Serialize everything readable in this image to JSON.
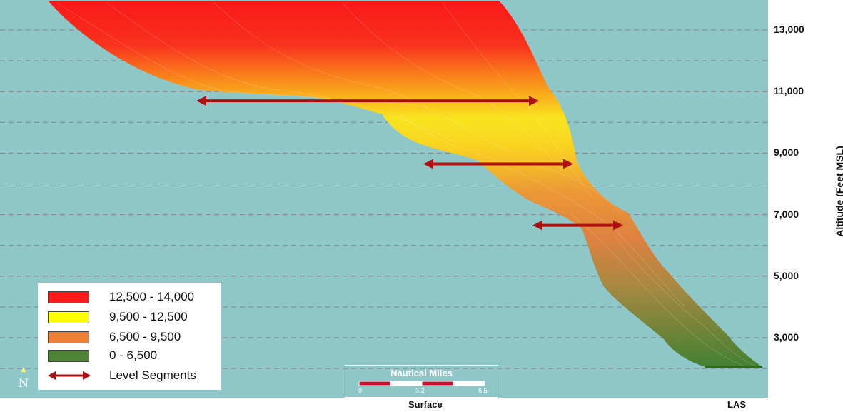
{
  "chart_data": {
    "type": "line",
    "ylabel": "Altitude (Feet MSL)",
    "ytick_labels": [
      "13,000",
      "11,000",
      "9,000",
      "7,000",
      "5,000",
      "3,000"
    ],
    "yticks": [
      13000,
      11000,
      9000,
      7000,
      5000,
      3000
    ],
    "ylim": [
      1600,
      13700
    ],
    "gridlines": [
      13000,
      12000,
      11000,
      10000,
      9000,
      8000,
      7000,
      6000,
      5000,
      4000,
      3000,
      2000
    ],
    "grid": true,
    "x_categories": [
      "Surface",
      "LAS"
    ],
    "series": [
      {
        "name": "12,500 - 14,000",
        "color": "#ff1a1a"
      },
      {
        "name": "9,500 - 12,500",
        "color": "#ffff00"
      },
      {
        "name": "6,500 - 9,500",
        "color": "#ee8035"
      },
      {
        "name": "0 - 6,500",
        "color": "#4f8436"
      }
    ],
    "level_segments": [
      {
        "name": "Level Segments",
        "altitude": 10700
      },
      {
        "name": "Level Segments",
        "altitude": 8650
      },
      {
        "name": "Level Segments",
        "altitude": 6650
      }
    ],
    "legend_position": "bottom-left",
    "legend": [
      {
        "label": "12,500 - 14,000",
        "color": "#ff1a1a",
        "kind": "swatch"
      },
      {
        "label": "9,500 - 12,500",
        "color": "#ffff00",
        "kind": "swatch"
      },
      {
        "label": "6,500 - 9,500",
        "color": "#ee8035",
        "kind": "swatch"
      },
      {
        "label": "0 - 6,500",
        "color": "#4f8436",
        "kind": "swatch"
      },
      {
        "label": "Level Segments",
        "color": "#b01010",
        "kind": "arrow"
      }
    ]
  },
  "scale_bar": {
    "title": "Nautical Miles",
    "ticks": [
      "0",
      "3.2",
      "6.5"
    ]
  },
  "north_arrow": {
    "label": "N"
  },
  "colors": {
    "background": "#8fc7c8",
    "gridline": "#777777",
    "arrow": "#b01010"
  }
}
